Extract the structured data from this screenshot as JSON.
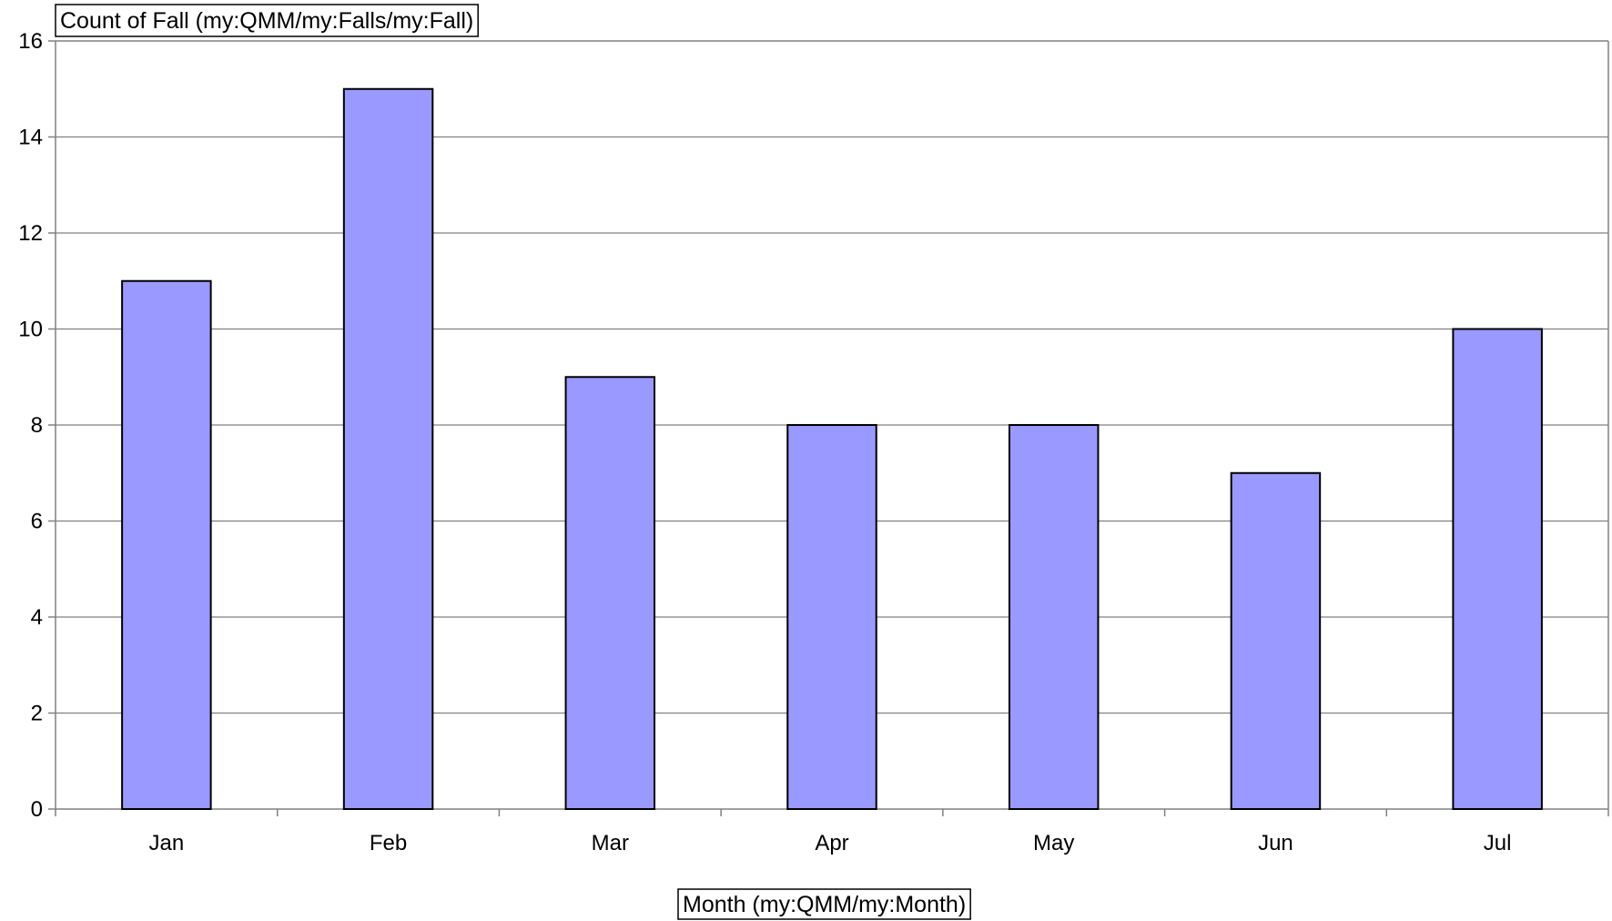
{
  "chart_data": {
    "type": "bar",
    "categories": [
      "Jan",
      "Feb",
      "Mar",
      "Apr",
      "May",
      "Jun",
      "Jul"
    ],
    "values": [
      11,
      15,
      9,
      8,
      8,
      7,
      10
    ],
    "title": "",
    "ylabel": "Count of Fall (my:QMM/my:Falls/my:Fall)",
    "xlabel": "Month (my:QMM/my:Month)",
    "ylim": [
      0,
      16
    ],
    "yticks": [
      0,
      2,
      4,
      6,
      8,
      10,
      12,
      14,
      16
    ],
    "grid": true,
    "legend": "none",
    "colors": {
      "bar_fill": "#9999ff",
      "bar_stroke": "#000000",
      "grid": "#808080",
      "axis": "#808080"
    }
  }
}
